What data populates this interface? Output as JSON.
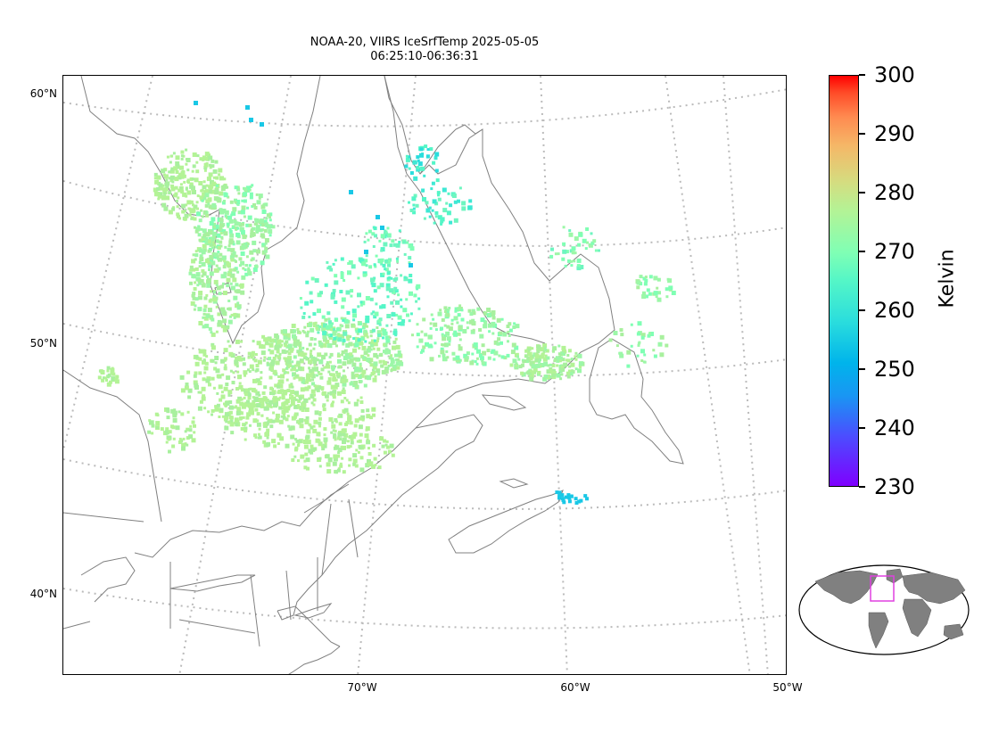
{
  "title": {
    "line1": "NOAA-20, VIIRS IceSrfTemp 2025-05-05",
    "line2": "06:25:10-06:36:31"
  },
  "map": {
    "lat_labels": [
      "60°N",
      "50°N",
      "40°N"
    ],
    "lon_labels": [
      "70°W",
      "60°W",
      "50°W"
    ],
    "coastline_color": "#808080",
    "graticule_color": "#bbbbbb"
  },
  "colorbar": {
    "label": "Kelvin",
    "min": 230,
    "max": 300,
    "ticks": [
      "300",
      "290",
      "280",
      "270",
      "260",
      "250",
      "240",
      "230"
    ],
    "colormap": "rainbow"
  },
  "inset": {
    "land_color": "#808080",
    "region_box_color": "#e040e0"
  }
}
